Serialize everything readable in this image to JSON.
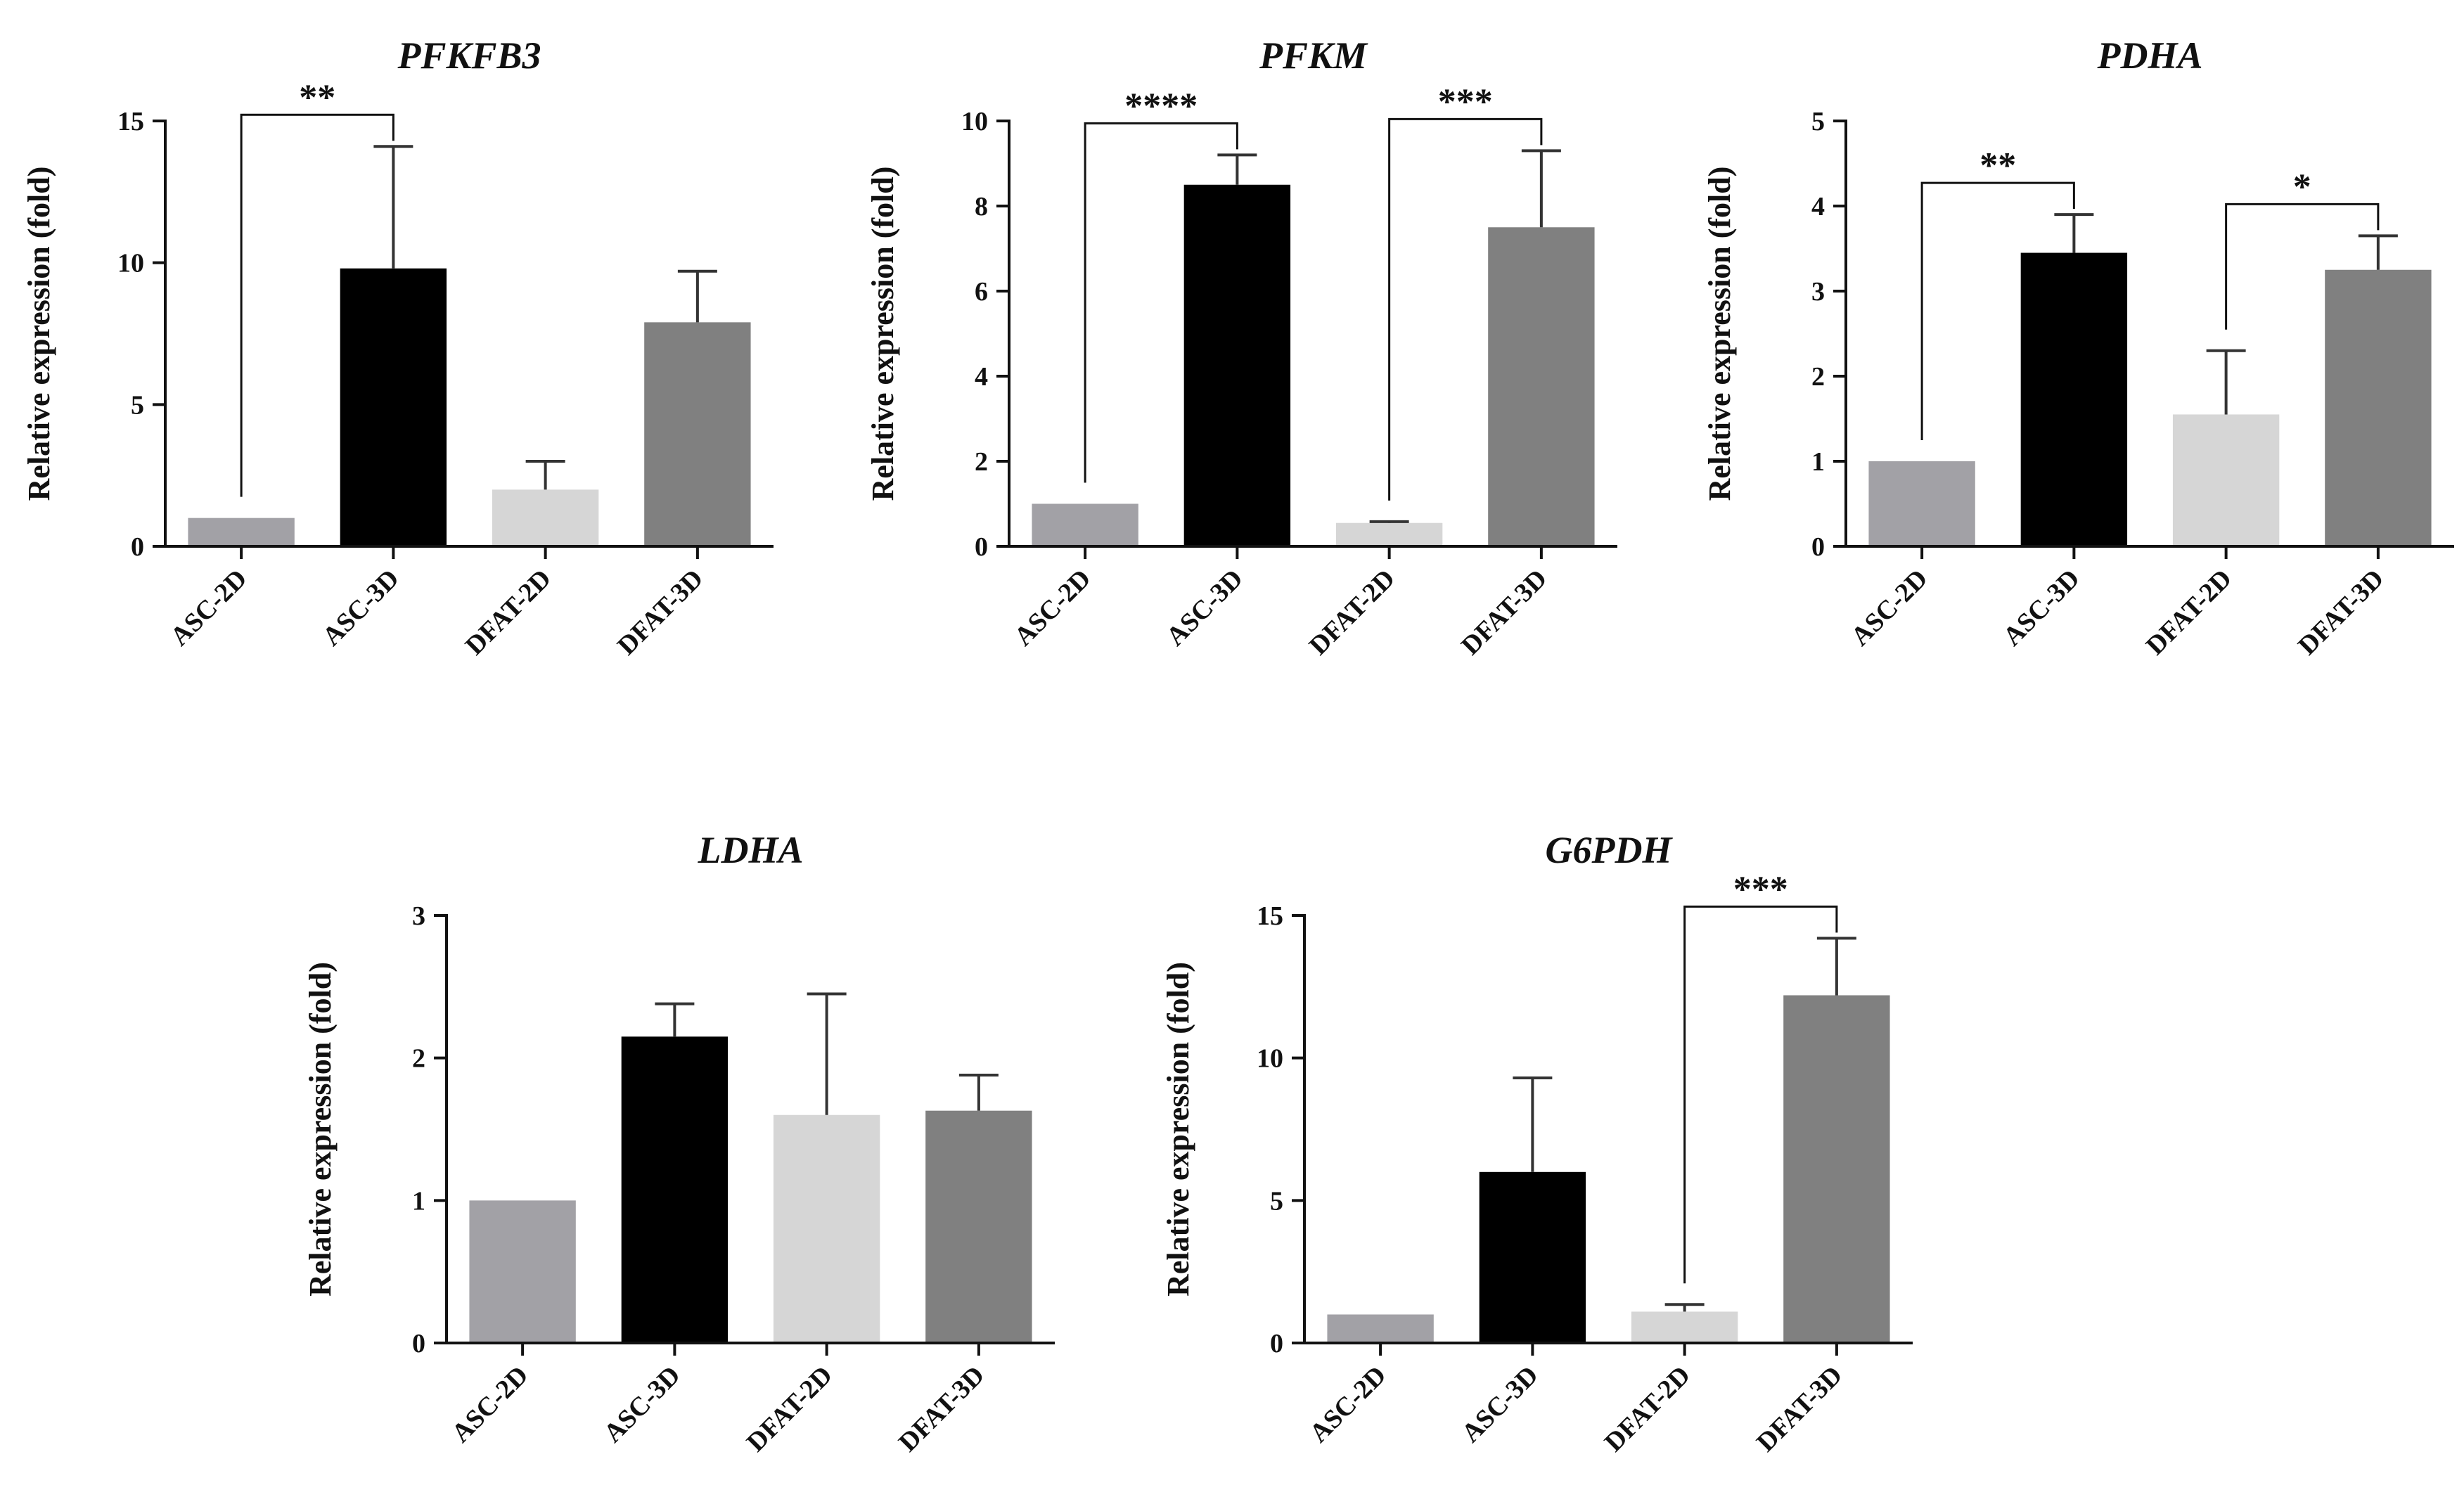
{
  "chart_data": [
    {
      "type": "bar",
      "title": "PFKFB3",
      "ylabel": "Relative expression (fold)",
      "xlabel": "",
      "ylim": [
        0,
        15
      ],
      "yticks": [
        0,
        5,
        10,
        15
      ],
      "categories": [
        "ASC-2D",
        "ASC-3D",
        "DFAT-2D",
        "DFAT-3D"
      ],
      "values": [
        1.0,
        9.8,
        2.0,
        7.9
      ],
      "errors": [
        0,
        4.3,
        1.0,
        1.8
      ],
      "colors": [
        "#a2a1a6",
        "#000000",
        "#d6d6d6",
        "#808080"
      ],
      "significance": [
        {
          "from": 0,
          "to": 1,
          "label": "**"
        }
      ]
    },
    {
      "type": "bar",
      "title": "PFKM",
      "ylabel": "Relative expression (fold)",
      "xlabel": "",
      "ylim": [
        0,
        10
      ],
      "yticks": [
        0,
        2,
        4,
        6,
        8,
        10
      ],
      "categories": [
        "ASC-2D",
        "ASC-3D",
        "DFAT-2D",
        "DFAT-3D"
      ],
      "values": [
        1.0,
        8.5,
        0.55,
        7.5
      ],
      "errors": [
        0,
        0.7,
        0.03,
        1.8
      ],
      "colors": [
        "#a2a1a6",
        "#000000",
        "#d6d6d6",
        "#808080"
      ],
      "significance": [
        {
          "from": 0,
          "to": 1,
          "label": "****"
        },
        {
          "from": 2,
          "to": 3,
          "label": "***"
        }
      ]
    },
    {
      "type": "bar",
      "title": "PDHA",
      "ylabel": "Relative expression (fold)",
      "xlabel": "",
      "ylim": [
        0,
        5
      ],
      "yticks": [
        0,
        1,
        2,
        3,
        4,
        5
      ],
      "categories": [
        "ASC-2D",
        "ASC-3D",
        "DFAT-2D",
        "DFAT-3D"
      ],
      "values": [
        1.0,
        3.45,
        1.55,
        3.25
      ],
      "errors": [
        0,
        0.45,
        0.75,
        0.4
      ],
      "colors": [
        "#a2a1a6",
        "#000000",
        "#d6d6d6",
        "#808080"
      ],
      "significance": [
        {
          "from": 0,
          "to": 1,
          "label": "**"
        },
        {
          "from": 2,
          "to": 3,
          "label": "*"
        }
      ]
    },
    {
      "type": "bar",
      "title": "LDHA",
      "ylabel": "Relative expression (fold)",
      "xlabel": "",
      "ylim": [
        0,
        3
      ],
      "yticks": [
        0,
        1,
        2,
        3
      ],
      "categories": [
        "ASC-2D",
        "ASC-3D",
        "DFAT-2D",
        "DFAT-3D"
      ],
      "values": [
        1.0,
        2.15,
        1.6,
        1.63
      ],
      "errors": [
        0,
        0.23,
        0.85,
        0.25
      ],
      "colors": [
        "#a2a1a6",
        "#000000",
        "#d6d6d6",
        "#808080"
      ],
      "significance": []
    },
    {
      "type": "bar",
      "title": "G6PDH",
      "ylabel": "Relative expression (fold)",
      "xlabel": "",
      "ylim": [
        0,
        15
      ],
      "yticks": [
        0,
        5,
        10,
        15
      ],
      "categories": [
        "ASC-2D",
        "ASC-3D",
        "DFAT-2D",
        "DFAT-3D"
      ],
      "values": [
        1.0,
        6.0,
        1.1,
        12.2
      ],
      "errors": [
        0,
        3.3,
        0.25,
        2.0
      ],
      "colors": [
        "#a2a1a6",
        "#000000",
        "#d6d6d6",
        "#808080"
      ],
      "significance": [
        {
          "from": 2,
          "to": 3,
          "label": "***"
        }
      ]
    }
  ]
}
